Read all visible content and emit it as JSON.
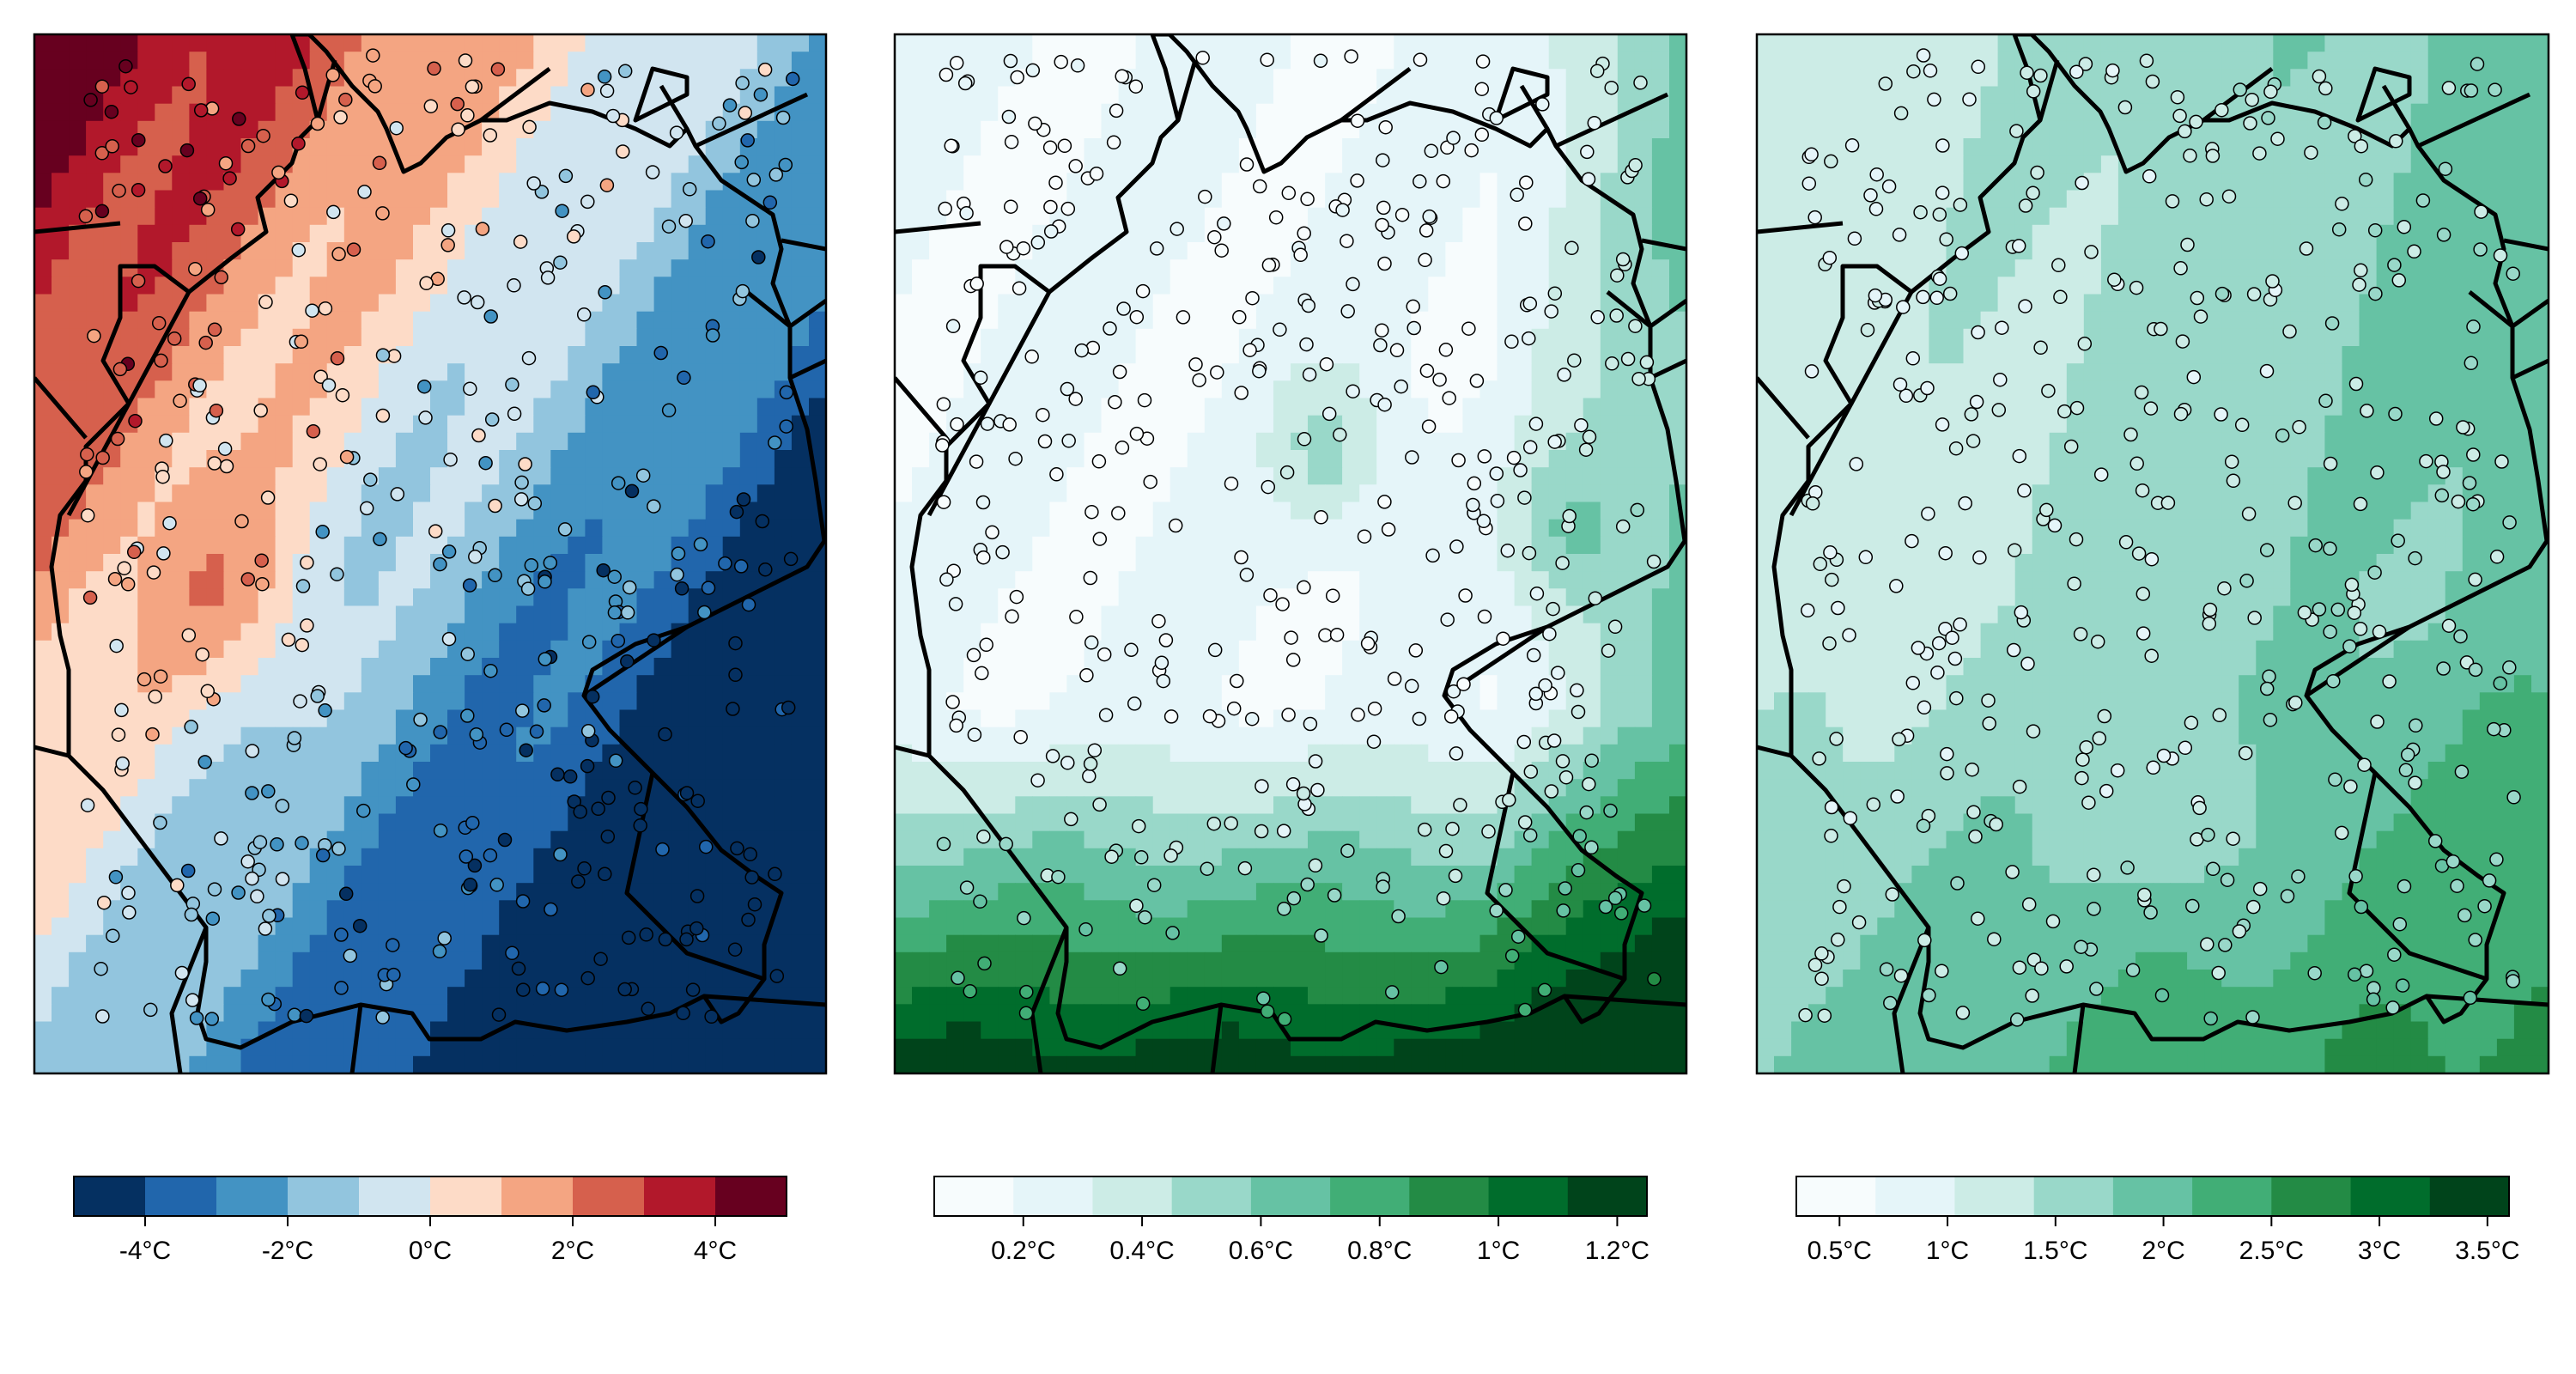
{
  "figure": {
    "panels": [
      {
        "id": "left",
        "map_type": "anomaly-diverging",
        "colors": [
          "#053061",
          "#2166ac",
          "#4393c3",
          "#92c5de",
          "#d1e5f0",
          "#fddbc7",
          "#f4a582",
          "#d6604d",
          "#b2182b",
          "#67001f"
        ],
        "colorbar": {
          "range": [
            -5,
            5
          ],
          "ticks": [
            {
              "value": -4,
              "label": "-4°C"
            },
            {
              "value": -2,
              "label": "-2°C"
            },
            {
              "value": 0,
              "label": "0°C"
            },
            {
              "value": 2,
              "label": "2°C"
            },
            {
              "value": 4,
              "label": "4°C"
            }
          ]
        }
      },
      {
        "id": "middle",
        "map_type": "error-sequential",
        "colors": [
          "#f7fcfd",
          "#e5f5f9",
          "#ccece6",
          "#99d8c9",
          "#66c2a4",
          "#41ae76",
          "#238b45",
          "#006d2c",
          "#00441b"
        ],
        "colorbar": {
          "range": [
            0.05,
            1.25
          ],
          "ticks": [
            {
              "value": 0.2,
              "label": "0.2°C"
            },
            {
              "value": 0.4,
              "label": "0.4°C"
            },
            {
              "value": 0.6,
              "label": "0.6°C"
            },
            {
              "value": 0.8,
              "label": "0.8°C"
            },
            {
              "value": 1.0,
              "label": "1°C"
            },
            {
              "value": 1.2,
              "label": "1.2°C"
            }
          ]
        }
      },
      {
        "id": "right",
        "map_type": "error-sequential",
        "colors": [
          "#f7fcfd",
          "#e5f5f9",
          "#ccece6",
          "#99d8c9",
          "#66c2a4",
          "#41ae76",
          "#238b45",
          "#006d2c",
          "#00441b"
        ],
        "colorbar": {
          "range": [
            0.3,
            3.6
          ],
          "ticks": [
            {
              "value": 0.5,
              "label": "0.5°C"
            },
            {
              "value": 1.0,
              "label": "1°C"
            },
            {
              "value": 1.5,
              "label": "1.5°C"
            },
            {
              "value": 2.0,
              "label": "2°C"
            },
            {
              "value": 2.5,
              "label": "2.5°C"
            },
            {
              "value": 3.0,
              "label": "3°C"
            },
            {
              "value": 3.5,
              "label": "3.5°C"
            }
          ]
        }
      }
    ]
  }
}
